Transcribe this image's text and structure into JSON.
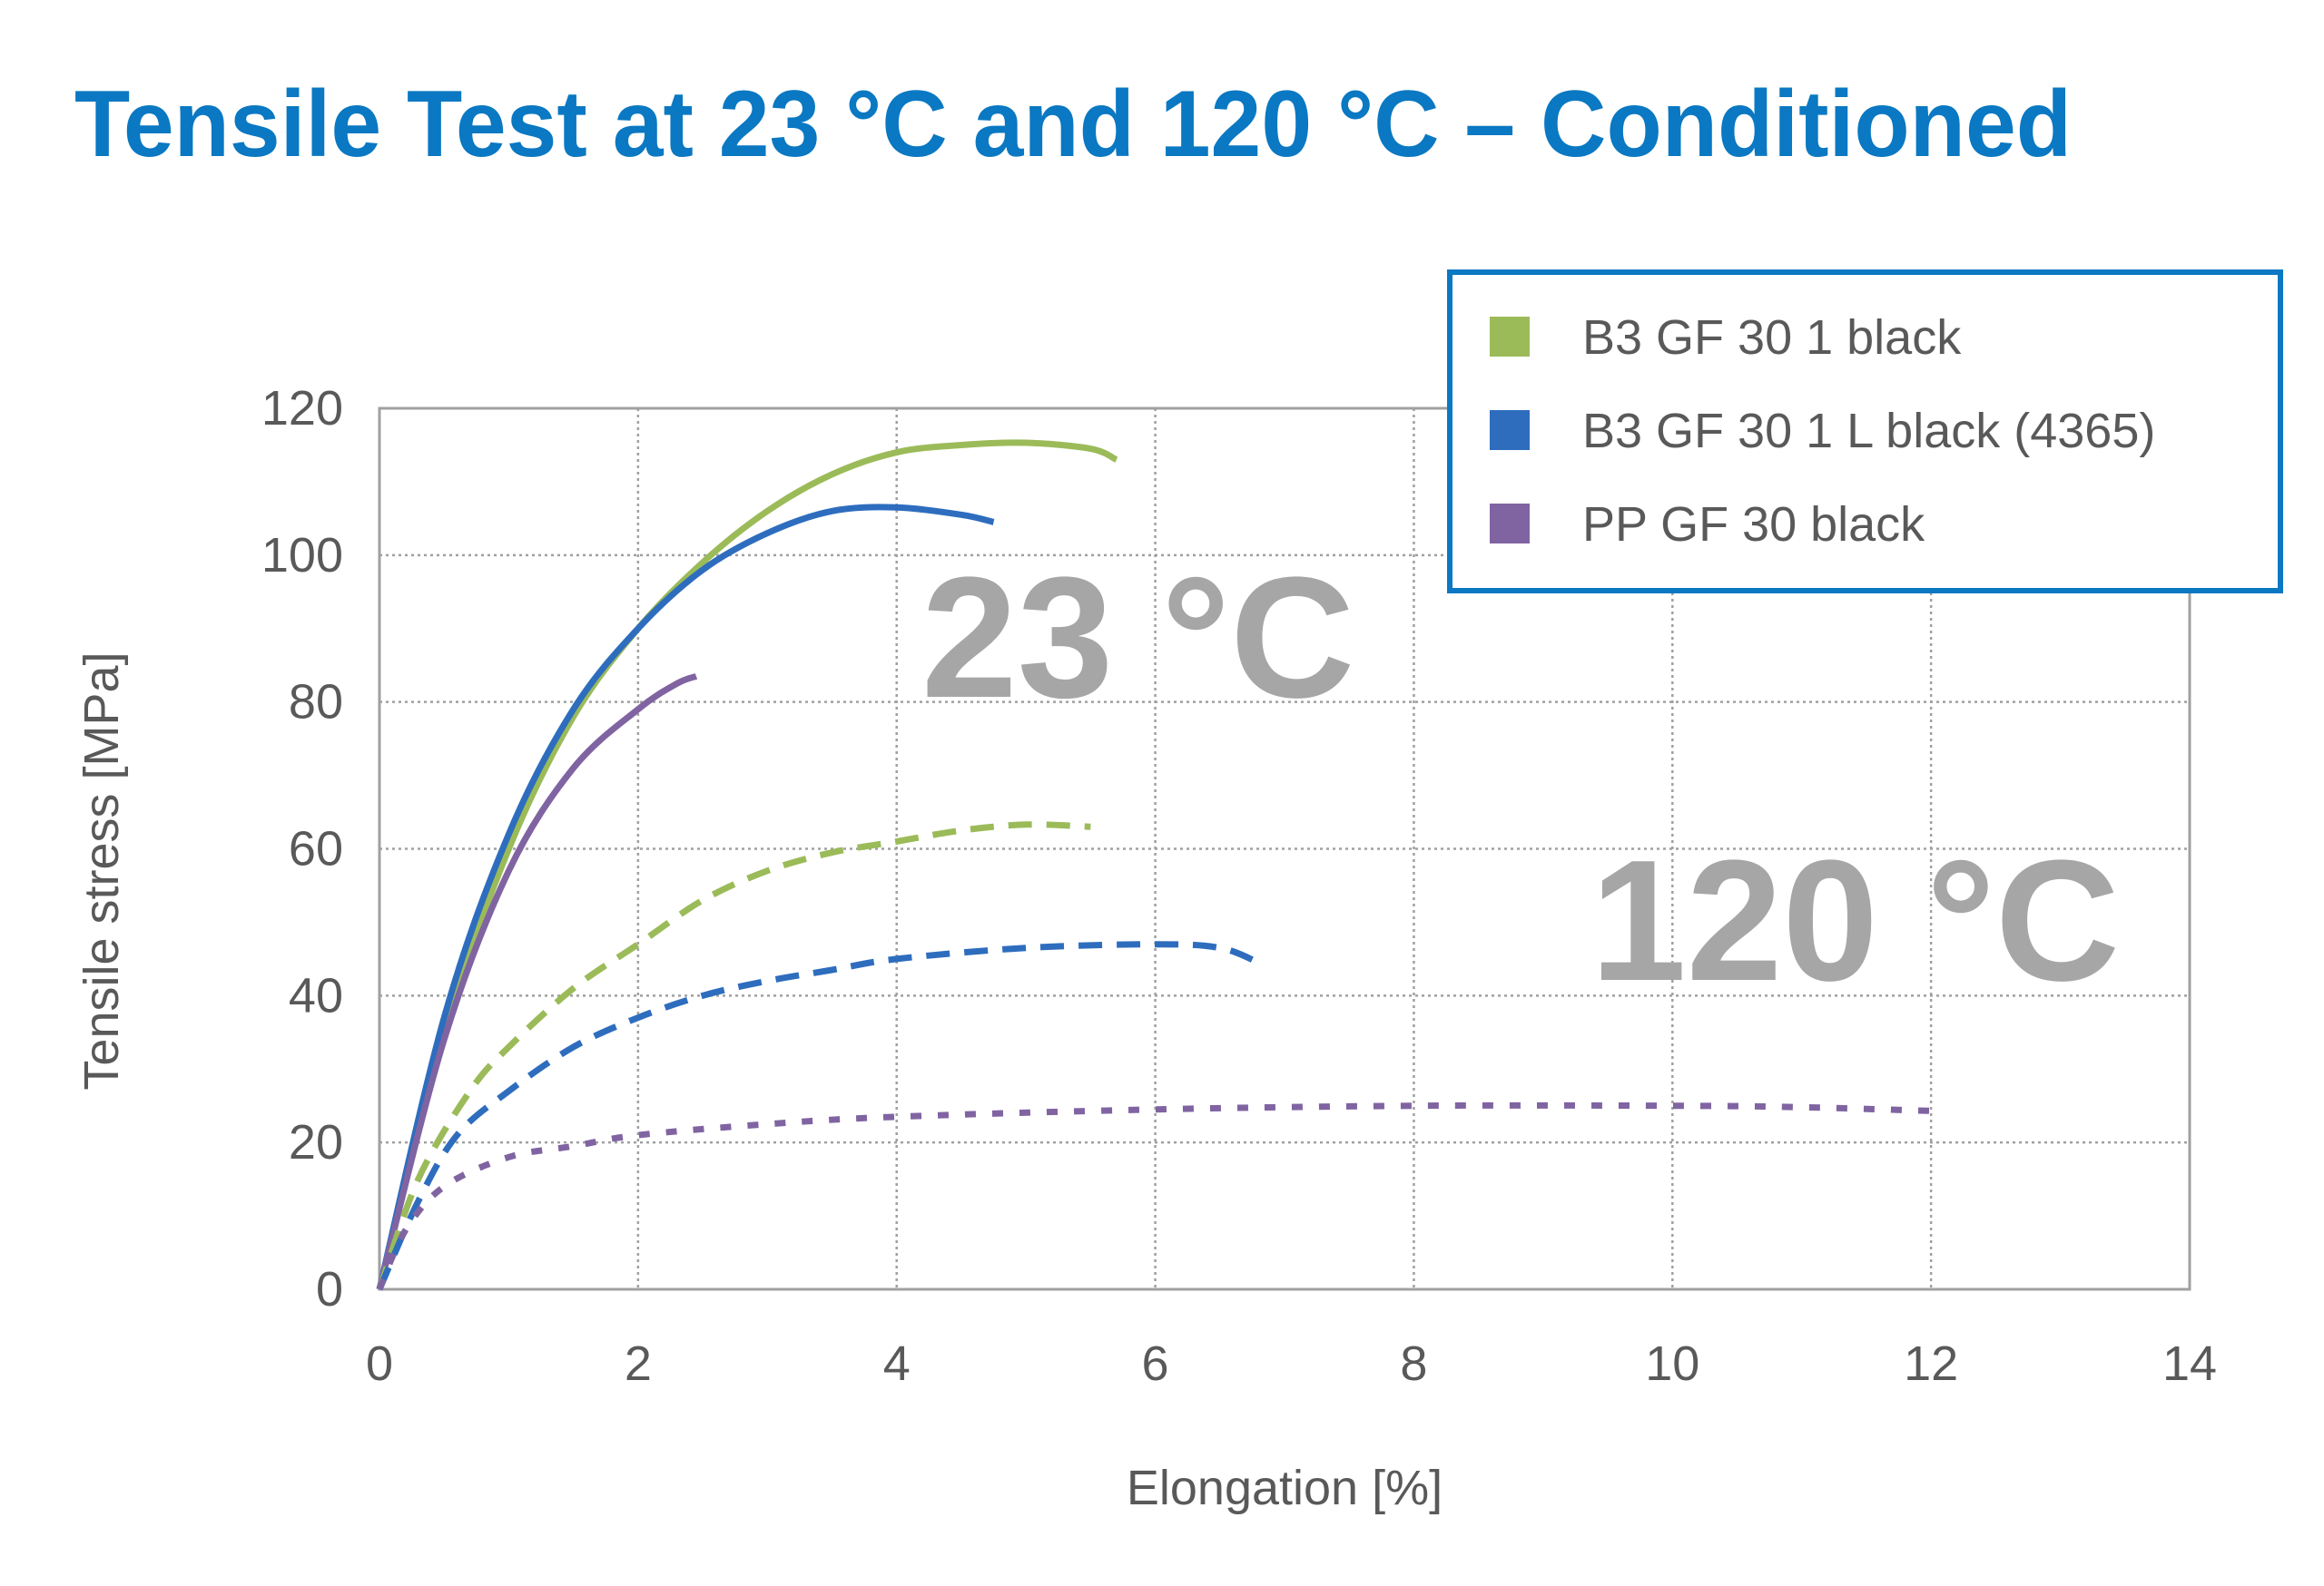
{
  "title": "Tensile Test at 23 °C and 120 °C – Conditioned",
  "colors": {
    "title": "#0A78C2",
    "legend_border": "#0A78C2",
    "annotation": "#A6A6A6",
    "grid": "#A0A0A0",
    "axis_text": "#595959"
  },
  "annotations": {
    "t23": "23 °C",
    "t120": "120 °C"
  },
  "chart_data": {
    "type": "line",
    "xlabel": "Elongation [%]",
    "ylabel": "Tensile stress [MPa]",
    "xlim": [
      0,
      14
    ],
    "ylim": [
      0,
      120
    ],
    "xticks": [
      0,
      2,
      4,
      6,
      8,
      10,
      12,
      14
    ],
    "yticks": [
      0,
      20,
      40,
      60,
      80,
      100,
      120
    ],
    "grid": true,
    "legend_position": "top-right",
    "legend": [
      {
        "name": "B3 GF 30 1 black",
        "color": "#9BBB59"
      },
      {
        "name": "B3 GF 30 1 L black (4365)",
        "color": "#2E6DBE"
      },
      {
        "name": "PP GF 30 black",
        "color": "#8064A2"
      }
    ],
    "series": [
      {
        "legend_index": 0,
        "temperature": "23 °C",
        "style": "solid",
        "color": "#9BBB59",
        "x": [
          0,
          0.5,
          1,
          1.5,
          2,
          2.5,
          3,
          3.5,
          4,
          4.5,
          5,
          5.5,
          5.7
        ],
        "y": [
          0,
          35,
          60,
          78,
          90,
          99,
          106,
          111,
          114,
          115,
          115.3,
          114.5,
          113
        ]
      },
      {
        "legend_index": 1,
        "temperature": "23 °C",
        "style": "solid",
        "color": "#2E6DBE",
        "x": [
          0,
          0.5,
          1,
          1.5,
          2,
          2.5,
          3,
          3.5,
          4,
          4.5,
          4.75
        ],
        "y": [
          0,
          37,
          62,
          79,
          90,
          98,
          103,
          106,
          106.5,
          105.5,
          104.5
        ]
      },
      {
        "legend_index": 2,
        "temperature": "23 °C",
        "style": "solid",
        "color": "#8064A2",
        "x": [
          0,
          0.5,
          1,
          1.5,
          2,
          2.3,
          2.45
        ],
        "y": [
          0,
          34,
          57,
          71,
          79,
          82.5,
          83.5
        ]
      },
      {
        "legend_index": 0,
        "temperature": "120 °C",
        "style": "dashed",
        "color": "#9BBB59",
        "x": [
          0,
          0.3,
          0.7,
          1,
          1.5,
          2,
          2.5,
          3,
          3.5,
          4,
          4.5,
          5,
          5.5
        ],
        "y": [
          0,
          15,
          27,
          33,
          41,
          47,
          53,
          57,
          59.5,
          61,
          62.5,
          63.3,
          63
        ]
      },
      {
        "legend_index": 1,
        "temperature": "120 °C",
        "style": "dashed",
        "color": "#2E6DBE",
        "x": [
          0,
          0.3,
          0.6,
          1,
          1.5,
          2,
          2.5,
          3,
          3.5,
          4,
          5,
          6,
          6.5,
          6.8
        ],
        "y": [
          0,
          12,
          21,
          27,
          33,
          37,
          40,
          42,
          43.5,
          45,
          46.5,
          47,
          46.5,
          44.5
        ]
      },
      {
        "legend_index": 2,
        "temperature": "120 °C",
        "style": "dotted",
        "color": "#8064A2",
        "x": [
          0,
          0.2,
          0.5,
          1,
          1.5,
          2,
          3,
          4,
          6,
          8,
          10,
          11,
          12
        ],
        "y": [
          0,
          8,
          14,
          18,
          19.5,
          21,
          22.5,
          23.5,
          24.5,
          25,
          25,
          24.8,
          24.3
        ]
      }
    ]
  }
}
